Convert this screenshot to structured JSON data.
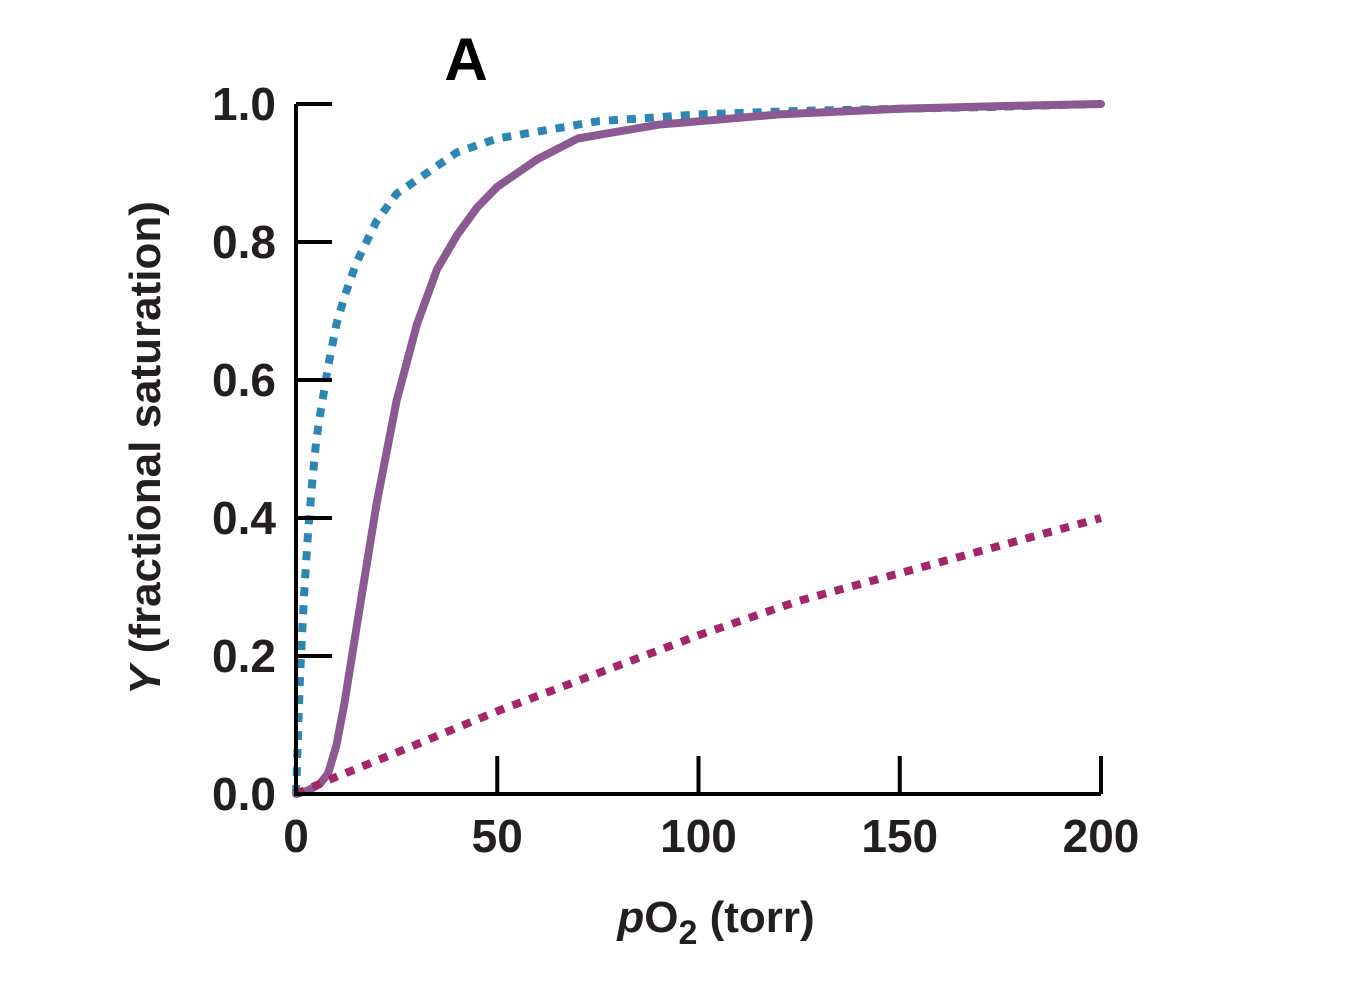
{
  "chart_data": {
    "type": "line",
    "panel_label": "A",
    "xlabel": {
      "italic": "p",
      "main": "O",
      "subscript": "2",
      "rest": " (torr)"
    },
    "ylabel": {
      "italic": "Y",
      "rest": " (fractional saturation)"
    },
    "xlim": [
      0,
      200
    ],
    "ylim": [
      0,
      1.0
    ],
    "xticks": [
      "0",
      "50",
      "100",
      "150",
      "200"
    ],
    "xtick_values": [
      0,
      50,
      100,
      150,
      200
    ],
    "yticks": [
      "0.0",
      "0.2",
      "0.4",
      "0.6",
      "0.8",
      "1.0"
    ],
    "ytick_values": [
      0,
      0.2,
      0.4,
      0.6,
      0.8,
      1.0
    ],
    "grid": false,
    "series": [
      {
        "style": "dotted",
        "color": "#2e86b4",
        "x": [
          0,
          1,
          2,
          3,
          4,
          5,
          6,
          8,
          10,
          12,
          15,
          20,
          25,
          30,
          40,
          50,
          60,
          75,
          100,
          125,
          150,
          175,
          200
        ],
        "y": [
          0,
          0.17,
          0.29,
          0.38,
          0.45,
          0.51,
          0.55,
          0.62,
          0.68,
          0.72,
          0.77,
          0.83,
          0.87,
          0.89,
          0.93,
          0.95,
          0.96,
          0.975,
          0.985,
          0.99,
          0.993,
          0.996,
          1.0
        ]
      },
      {
        "style": "solid",
        "color": "#8b5a93",
        "x": [
          0,
          3,
          6,
          8,
          10,
          12,
          15,
          20,
          25,
          30,
          35,
          40,
          45,
          50,
          60,
          70,
          80,
          90,
          100,
          120,
          150,
          175,
          200
        ],
        "y": [
          0,
          0.005,
          0.015,
          0.03,
          0.07,
          0.13,
          0.24,
          0.42,
          0.57,
          0.68,
          0.76,
          0.81,
          0.85,
          0.88,
          0.92,
          0.95,
          0.96,
          0.97,
          0.975,
          0.985,
          0.993,
          0.997,
          1.0
        ]
      },
      {
        "style": "dotted",
        "color": "#a3266b",
        "x": [
          0,
          8,
          25,
          50,
          75,
          100,
          125,
          150,
          175,
          200
        ],
        "y": [
          0,
          0.02,
          0.06,
          0.12,
          0.175,
          0.23,
          0.28,
          0.32,
          0.36,
          0.4
        ]
      }
    ]
  }
}
